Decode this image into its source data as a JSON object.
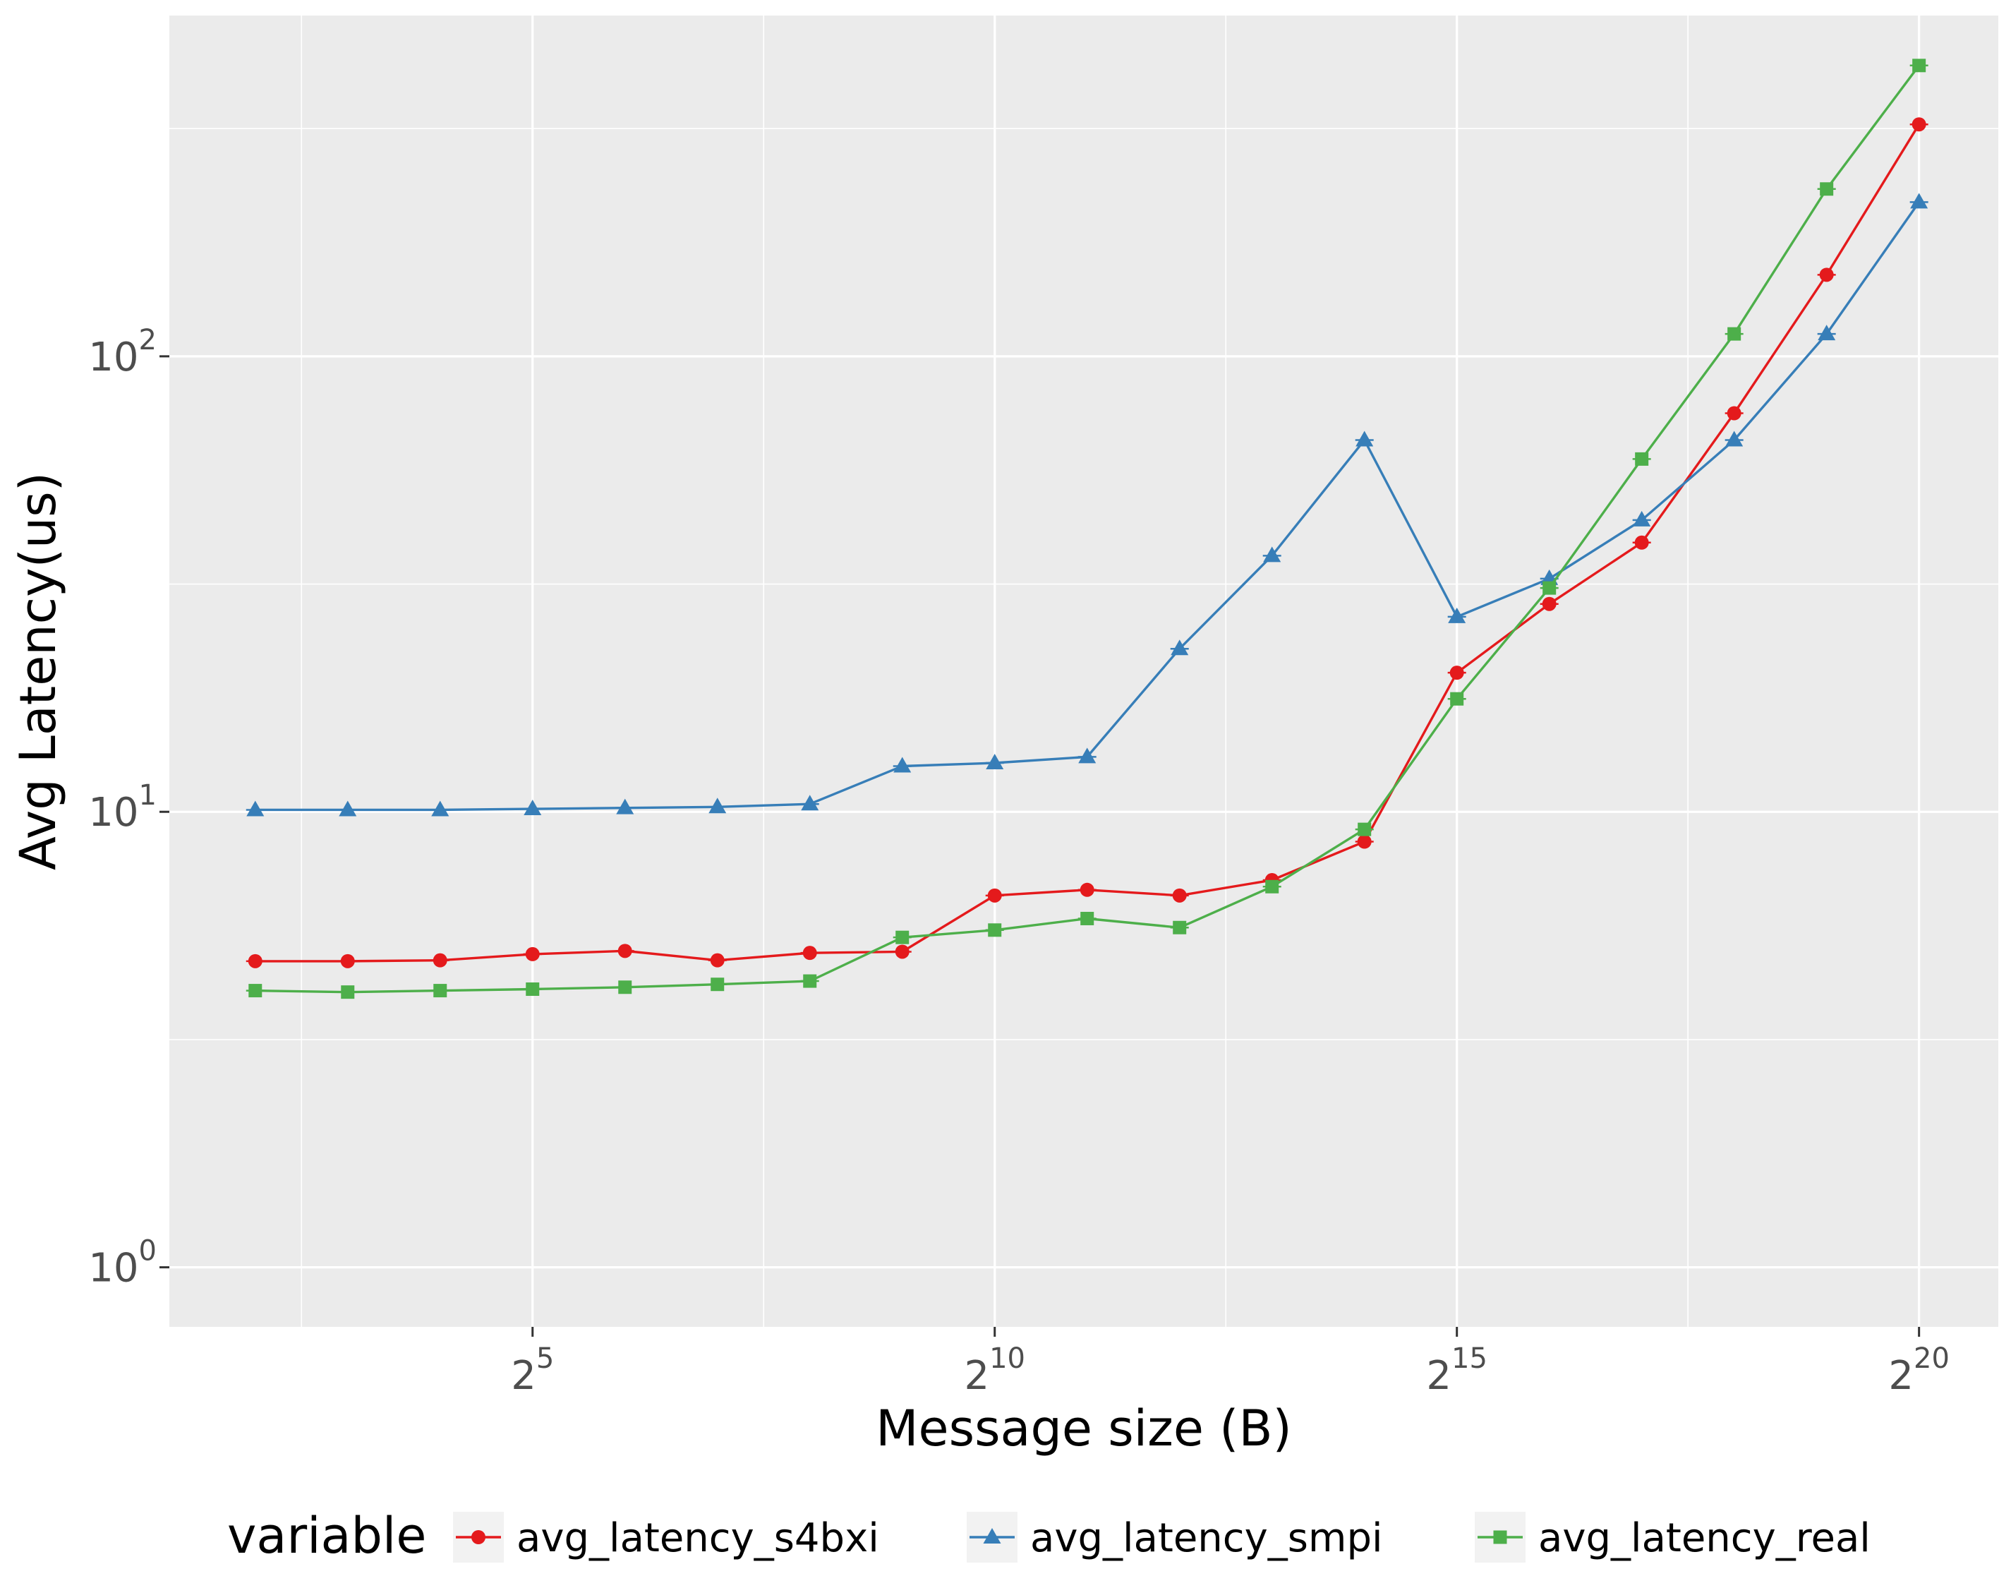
{
  "chart_data": {
    "type": "line",
    "xlabel": "Message size (B)",
    "ylabel": "Avg Latency(us)",
    "x_scale": "log2",
    "y_scale": "log10",
    "x": [
      4,
      8,
      16,
      32,
      64,
      128,
      256,
      512,
      1024,
      2048,
      4096,
      8192,
      16384,
      32768,
      65536,
      131072,
      262144,
      524288,
      1048576
    ],
    "x_ticks": [
      {
        "value": 32,
        "base": "2",
        "exp": "5"
      },
      {
        "value": 1024,
        "base": "2",
        "exp": "10"
      },
      {
        "value": 32768,
        "base": "2",
        "exp": "15"
      },
      {
        "value": 1048576,
        "base": "2",
        "exp": "20"
      }
    ],
    "y_ticks": [
      {
        "value": 1,
        "base": "10",
        "exp": "0"
      },
      {
        "value": 10,
        "base": "10",
        "exp": "1"
      },
      {
        "value": 100,
        "base": "10",
        "exp": "2"
      }
    ],
    "xlim": [
      2.1,
      1900000
    ],
    "ylim": [
      0.74,
      560
    ],
    "grid": true,
    "legend": {
      "title": "variable",
      "position": "bottom"
    },
    "series": [
      {
        "name": "avg_latency_s4bxi",
        "color": "#e41a1c",
        "marker": "circle",
        "values": [
          4.7,
          4.7,
          4.72,
          4.87,
          4.95,
          4.72,
          4.9,
          4.93,
          6.55,
          6.74,
          6.55,
          7.08,
          8.6,
          20.2,
          28.6,
          39.0,
          75.0,
          151.0,
          323.0
        ]
      },
      {
        "name": "avg_latency_smpi",
        "color": "#377eb8",
        "marker": "triangle",
        "values": [
          10.1,
          10.1,
          10.1,
          10.15,
          10.2,
          10.25,
          10.4,
          12.6,
          12.8,
          13.2,
          22.8,
          36.5,
          65.5,
          26.8,
          32.5,
          43.7,
          65.5,
          112.0,
          218.0
        ]
      },
      {
        "name": "avg_latency_real",
        "color": "#4daf4a",
        "marker": "square",
        "values": [
          4.05,
          4.02,
          4.05,
          4.08,
          4.12,
          4.18,
          4.25,
          5.3,
          5.5,
          5.83,
          5.57,
          6.85,
          9.15,
          17.7,
          31.0,
          59.5,
          112.0,
          233.0,
          435.0
        ]
      }
    ]
  }
}
